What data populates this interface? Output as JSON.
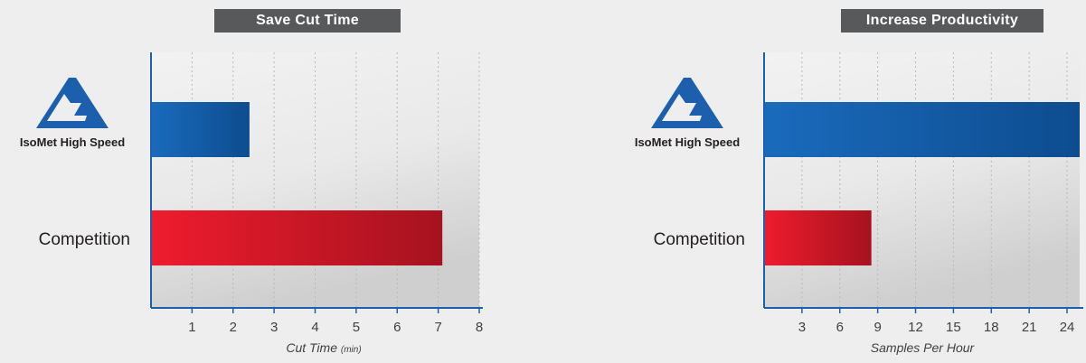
{
  "chart_data": [
    {
      "type": "bar",
      "orientation": "horizontal",
      "title": "Save Cut Time",
      "categories": [
        "IsoMet High Speed",
        "Competition"
      ],
      "values": [
        2.4,
        7.1
      ],
      "xlabel": "Cut Time",
      "xlabel_unit": "(min)",
      "xlim": [
        0,
        8
      ],
      "xticks": [
        1,
        2,
        3,
        4,
        5,
        6,
        7,
        8
      ],
      "grid": "vertical dotted",
      "colors": [
        "#0d4c8f",
        "#d0142c"
      ]
    },
    {
      "type": "bar",
      "orientation": "horizontal",
      "title": "Increase Productivity",
      "categories": [
        "IsoMet High Speed",
        "Competition"
      ],
      "values": [
        25,
        8.5
      ],
      "xlabel": "Samples Per Hour",
      "xlabel_unit": "",
      "xlim": [
        0,
        25
      ],
      "xticks": [
        3,
        6,
        9,
        12,
        15,
        18,
        21,
        24
      ],
      "grid": "vertical dotted",
      "colors": [
        "#0d4c8f",
        "#d0142c"
      ]
    }
  ],
  "brand": {
    "logo_icon": "buehler-logo-icon"
  }
}
